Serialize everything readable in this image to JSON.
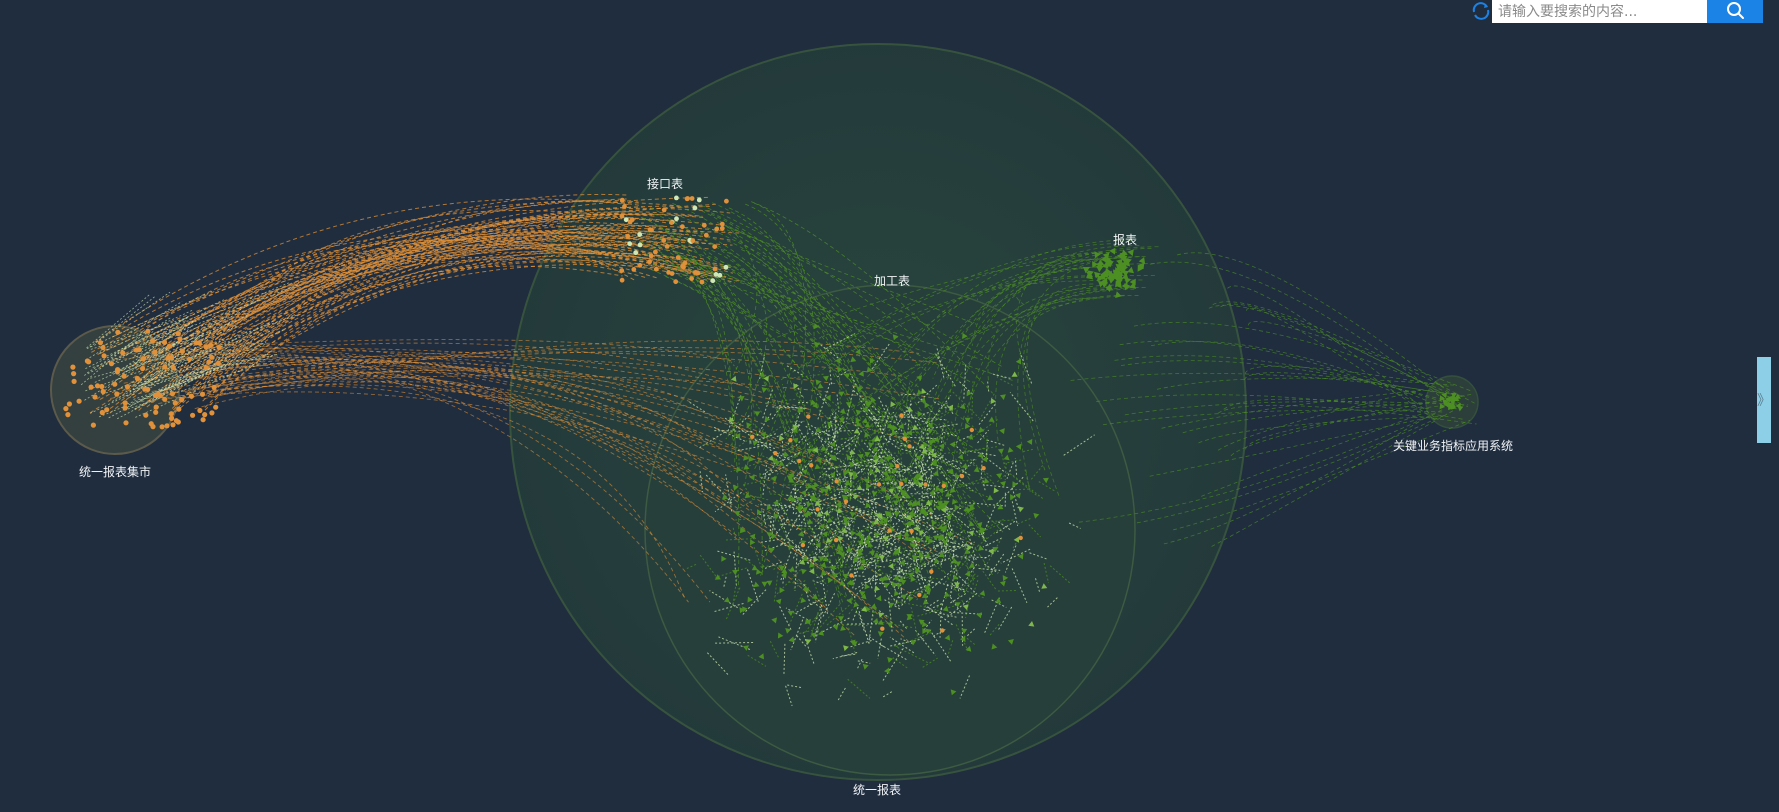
{
  "search": {
    "placeholder": "请输入要搜索的内容..."
  },
  "side_toggle": {
    "label": "》"
  },
  "icons": {
    "refresh": "refresh-icon",
    "search": "search-icon"
  },
  "colors": {
    "background": "#1f2d3f",
    "orange_nodes": "#e0913a",
    "green_nodes": "#4d8f23",
    "light_edges": "#cfe8b6",
    "cluster_fill": "#2a4a3c",
    "accent_blue": "#1b82e6"
  },
  "graph": {
    "clusters": [
      {
        "id": "report-mart",
        "label": "统一报表集市",
        "color": "orange"
      },
      {
        "id": "interface-table",
        "label": "接口表",
        "color": "orange"
      },
      {
        "id": "processing-table",
        "label": "加工表",
        "color": "green"
      },
      {
        "id": "report",
        "label": "报表",
        "color": "green"
      },
      {
        "id": "unified-report",
        "label": "统一报表",
        "color": "green"
      },
      {
        "id": "kpi-system",
        "label": "关键业务指标应用系统",
        "color": "green"
      }
    ]
  }
}
